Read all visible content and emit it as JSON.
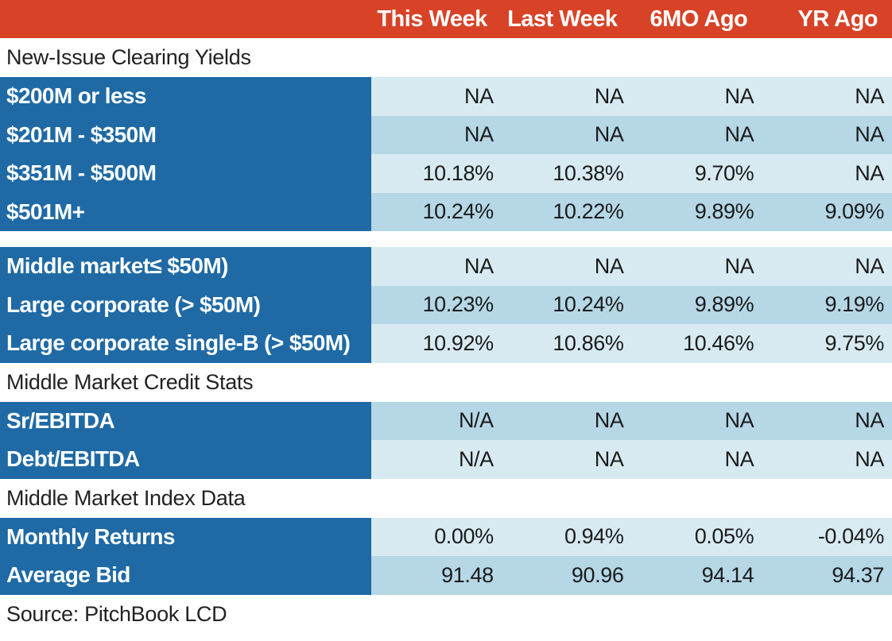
{
  "header": {
    "columns": [
      "This Week",
      "Last Week",
      "6MO Ago",
      "YR Ago"
    ]
  },
  "sections": {
    "new_issue": "New-Issue Clearing Yields",
    "credit_stats": "Middle Market Credit Stats",
    "index_data": "Middle Market Index Data"
  },
  "rows": {
    "r1": {
      "label": "$200M or less",
      "values": [
        "NA",
        "NA",
        "NA",
        "NA"
      ]
    },
    "r2": {
      "label": "$201M - $350M",
      "values": [
        "NA",
        "NA",
        "NA",
        "NA"
      ]
    },
    "r3": {
      "label": "$351M - $500M",
      "values": [
        "10.18%",
        "10.38%",
        "9.70%",
        "NA"
      ]
    },
    "r4": {
      "label": "$501M+",
      "values": [
        "10.24%",
        "10.22%",
        "9.89%",
        "9.09%"
      ]
    },
    "r5": {
      "label": "Middle market≤ $50M)",
      "values": [
        "NA",
        "NA",
        "NA",
        "NA"
      ]
    },
    "r6": {
      "label": "Large corporate (> $50M)",
      "values": [
        "10.23%",
        "10.24%",
        "9.89%",
        "9.19%"
      ]
    },
    "r7": {
      "label": "Large corporate single-B (> $50M)",
      "values": [
        "10.92%",
        "10.86%",
        "10.46%",
        "9.75%"
      ]
    },
    "r8": {
      "label": "Sr/EBITDA",
      "values": [
        "N/A",
        "NA",
        "NA",
        "NA"
      ]
    },
    "r9": {
      "label": "Debt/EBITDA",
      "values": [
        "N/A",
        "NA",
        "NA",
        "NA"
      ]
    },
    "r10": {
      "label": "Monthly Returns",
      "values": [
        "0.00%",
        "0.94%",
        "0.05%",
        "-0.04%"
      ]
    },
    "r11": {
      "label": "Average Bid",
      "values": [
        "91.48",
        "90.96",
        "94.14",
        "94.37"
      ]
    }
  },
  "source": "Source: PitchBook LCD",
  "colors": {
    "header_bg": "#d84226",
    "label_bg": "#1f6aa5",
    "row_light": "#d7eaf2",
    "row_dark": "#b5d7e6"
  }
}
